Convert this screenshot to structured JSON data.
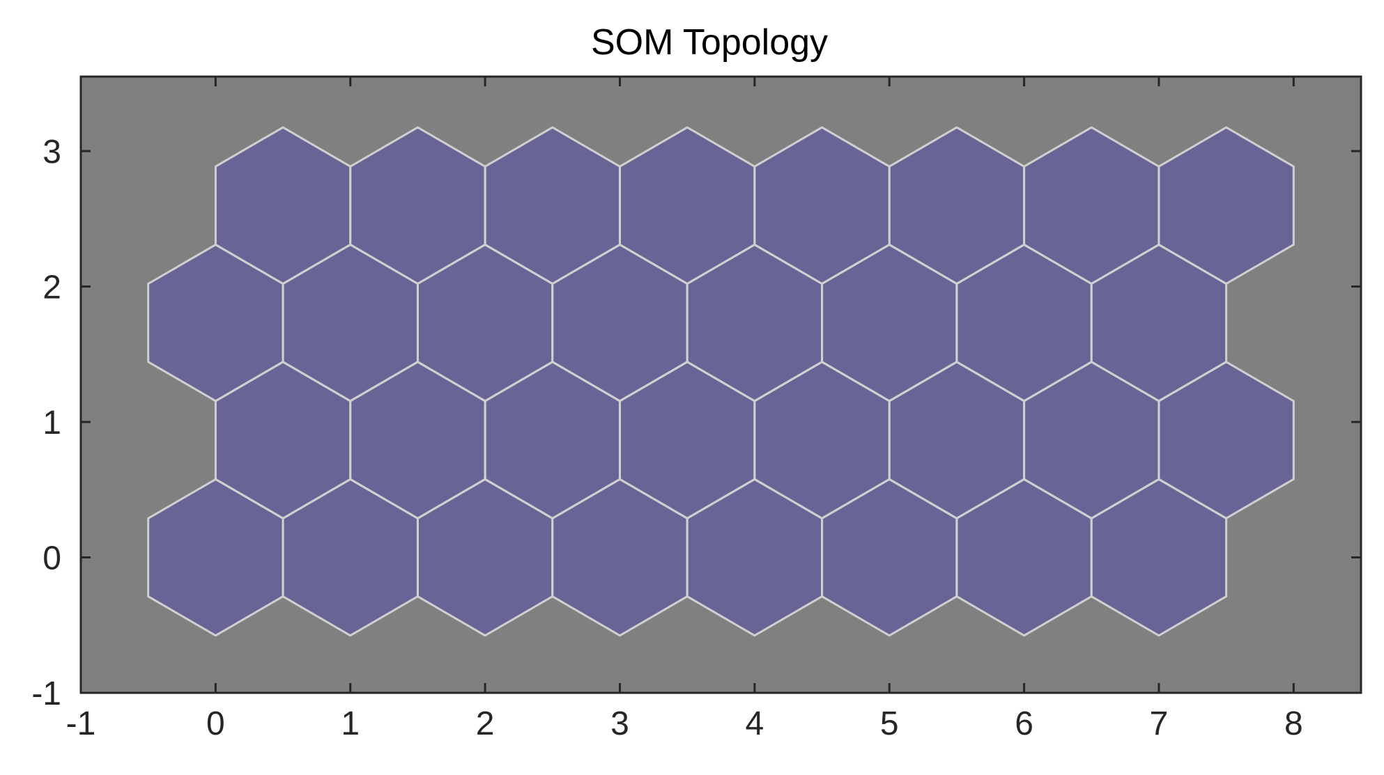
{
  "chart_data": {
    "type": "scatter",
    "subtype": "hexagonal-topology",
    "title": "SOM Topology",
    "xlabel": "",
    "ylabel": "",
    "xlim": [
      -1,
      8.5
    ],
    "ylim": [
      -1,
      3.55
    ],
    "xticks": [
      -1,
      0,
      1,
      2,
      3,
      4,
      5,
      6,
      7,
      8
    ],
    "yticks": [
      -1,
      0,
      1,
      2,
      3
    ],
    "xtick_labels": [
      "-1",
      "0",
      "1",
      "2",
      "3",
      "4",
      "5",
      "6",
      "7",
      "8"
    ],
    "ytick_labels": [
      "-1",
      "0",
      "1",
      "2",
      "3"
    ],
    "grid": false,
    "neurons": {
      "rows": 4,
      "cols": 8,
      "row_y": [
        0,
        0.866,
        1.732,
        2.598
      ],
      "row_x_offset": [
        0,
        0.5,
        0,
        0.5
      ],
      "x_start": 0,
      "x_spacing": 1,
      "hex_radius": 0.577
    },
    "colors": {
      "axes_background": "#808080",
      "hex_fill": "#686496",
      "hex_edge": "#d0d0d0",
      "axis_line": "#262626"
    }
  }
}
